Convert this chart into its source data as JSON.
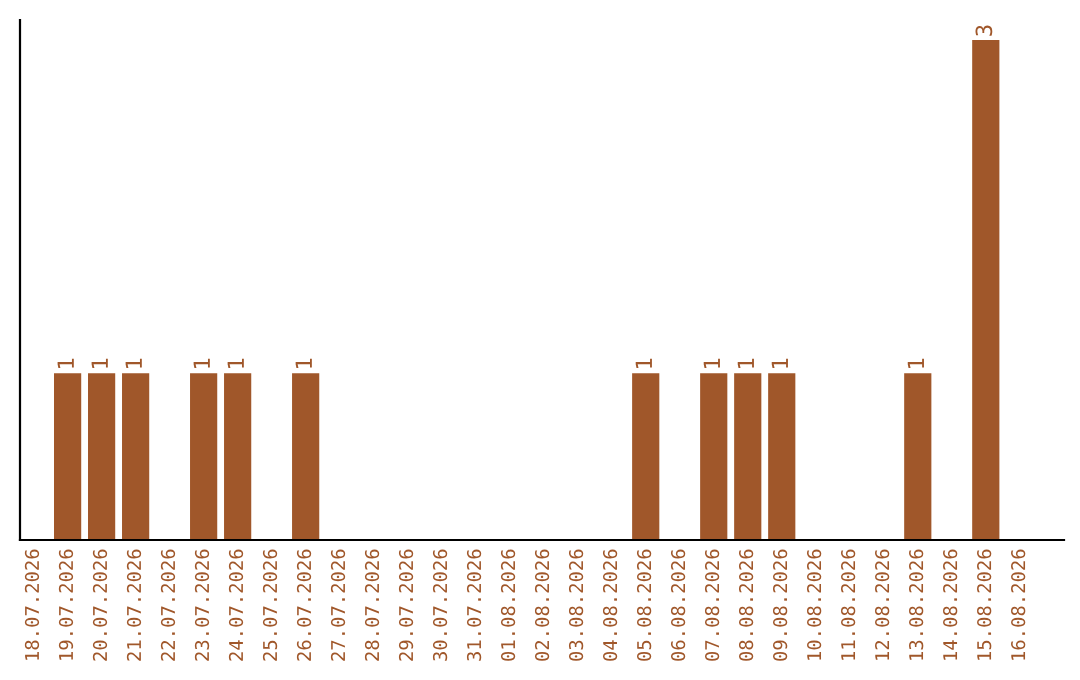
{
  "chart_data": {
    "type": "bar",
    "categories": [
      "18.07.2026",
      "19.07.2026",
      "20.07.2026",
      "21.07.2026",
      "22.07.2026",
      "23.07.2026",
      "24.07.2026",
      "25.07.2026",
      "26.07.2026",
      "27.07.2026",
      "28.07.2026",
      "29.07.2026",
      "30.07.2026",
      "31.07.2026",
      "01.08.2026",
      "02.08.2026",
      "03.08.2026",
      "04.08.2026",
      "05.08.2026",
      "06.08.2026",
      "07.08.2026",
      "08.08.2026",
      "09.08.2026",
      "10.08.2026",
      "11.08.2026",
      "12.08.2026",
      "13.08.2026",
      "14.08.2026",
      "15.08.2026",
      "16.08.2026"
    ],
    "values": [
      0,
      1,
      1,
      1,
      0,
      1,
      1,
      0,
      1,
      0,
      0,
      0,
      0,
      0,
      0,
      0,
      0,
      0,
      1,
      0,
      1,
      1,
      1,
      0,
      0,
      0,
      1,
      0,
      3,
      0
    ],
    "value_labels": [
      null,
      "1",
      "1",
      "1",
      null,
      "1",
      "1",
      null,
      "1",
      null,
      null,
      null,
      null,
      null,
      null,
      null,
      null,
      null,
      "1",
      null,
      "1",
      "1",
      "1",
      null,
      null,
      null,
      "1",
      null,
      "3",
      null
    ],
    "color": "#a0572a",
    "grid": false,
    "legend": false
  }
}
